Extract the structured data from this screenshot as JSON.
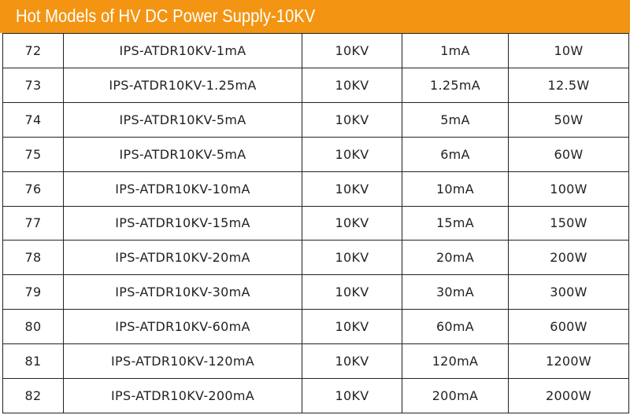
{
  "header": {
    "title": "Hot Models of HV DC Power Supply-10KV"
  },
  "table": {
    "rows": [
      [
        "72",
        "IPS-ATDR10KV-1mA",
        "10KV",
        "1mA",
        "10W"
      ],
      [
        "73",
        "IPS-ATDR10KV-1.25mA",
        "10KV",
        "1.25mA",
        "12.5W"
      ],
      [
        "74",
        "IPS-ATDR10KV-5mA",
        "10KV",
        "5mA",
        "50W"
      ],
      [
        "75",
        "IPS-ATDR10KV-5mA",
        "10KV",
        "6mA",
        "60W"
      ],
      [
        "76",
        "IPS-ATDR10KV-10mA",
        "10KV",
        "10mA",
        "100W"
      ],
      [
        "77",
        "IPS-ATDR10KV-15mA",
        "10KV",
        "15mA",
        "150W"
      ],
      [
        "78",
        "IPS-ATDR10KV-20mA",
        "10KV",
        "20mA",
        "200W"
      ],
      [
        "79",
        "IPS-ATDR10KV-30mA",
        "10KV",
        "30mA",
        "300W"
      ],
      [
        "80",
        "IPS-ATDR10KV-60mA",
        "10KV",
        "60mA",
        "600W"
      ],
      [
        "81",
        "IPS-ATDR10KV-120mA",
        "10KV",
        "120mA",
        "1200W"
      ],
      [
        "82",
        "IPS-ATDR10KV-200mA",
        "10KV",
        "200mA",
        "2000W"
      ]
    ]
  }
}
